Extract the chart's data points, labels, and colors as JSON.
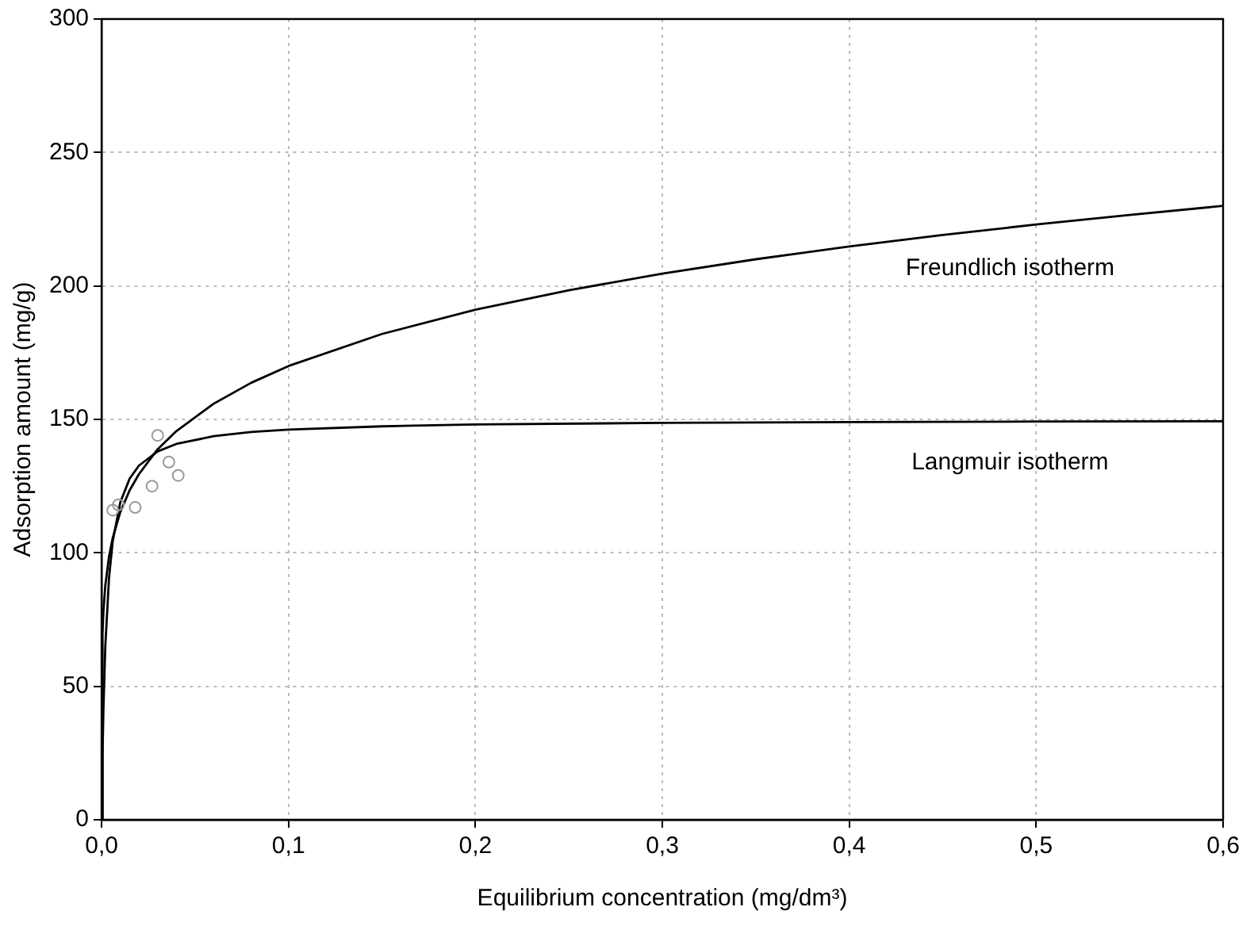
{
  "chart_data": {
    "type": "line",
    "xlabel": "Equilibrium concentration (mg/dm³)",
    "ylabel": "Adsorption amount (mg/g)",
    "xlim": [
      0,
      0.6
    ],
    "xticks": [
      {
        "value": 0,
        "label": "0,0"
      },
      {
        "value": 0.1,
        "label": "0,1"
      },
      {
        "value": 0.2,
        "label": "0,2"
      },
      {
        "value": 0.3,
        "label": "0,3"
      },
      {
        "value": 0.4,
        "label": "0,4"
      },
      {
        "value": 0.5,
        "label": "0,5"
      },
      {
        "value": 0.6,
        "label": "0,6"
      }
    ],
    "ylim": [
      0,
      300
    ],
    "yticks": [
      0,
      50,
      100,
      150,
      200,
      250,
      300
    ],
    "grid": true,
    "legend": false,
    "series": [
      {
        "type": "scatter",
        "marker": "circle",
        "color": "#9a9a9a",
        "x": [
          0.006,
          0.009,
          0.018,
          0.027,
          0.03,
          0.036,
          0.041
        ],
        "values": [
          116,
          118,
          117,
          125,
          144,
          134,
          129
        ]
      },
      {
        "type": "line",
        "name": "Freundlich isotherm",
        "marker": "none",
        "color": "#000000",
        "x": [
          0,
          0.0005,
          0.001,
          0.002,
          0.004,
          0.006,
          0.01,
          0.015,
          0.02,
          0.03,
          0.04,
          0.06,
          0.08,
          0.1,
          0.15,
          0.2,
          0.25,
          0.3,
          0.35,
          0.4,
          0.45,
          0.5,
          0.55,
          0.6
        ],
        "values": [
          0,
          69.5,
          78.1,
          87.8,
          98.7,
          105.7,
          115.2,
          123.4,
          129.5,
          138.8,
          145.6,
          155.9,
          163.7,
          170.0,
          182.0,
          191.1,
          198.4,
          204.6,
          210.0,
          214.8,
          219.1,
          223.0,
          226.6,
          230.0
        ]
      },
      {
        "type": "line",
        "name": "Langmuir isotherm",
        "marker": "none",
        "color": "#000000",
        "x": [
          0,
          0.0005,
          0.001,
          0.002,
          0.004,
          0.006,
          0.01,
          0.015,
          0.02,
          0.03,
          0.04,
          0.06,
          0.08,
          0.1,
          0.15,
          0.2,
          0.3,
          0.4,
          0.5,
          0.6
        ],
        "values": [
          0,
          24.1,
          41.5,
          65.1,
          90.8,
          104.5,
          118.9,
          127.8,
          132.7,
          138.0,
          140.8,
          143.7,
          145.3,
          146.2,
          147.4,
          148.1,
          148.7,
          149.0,
          149.2,
          149.3
        ]
      }
    ]
  }
}
